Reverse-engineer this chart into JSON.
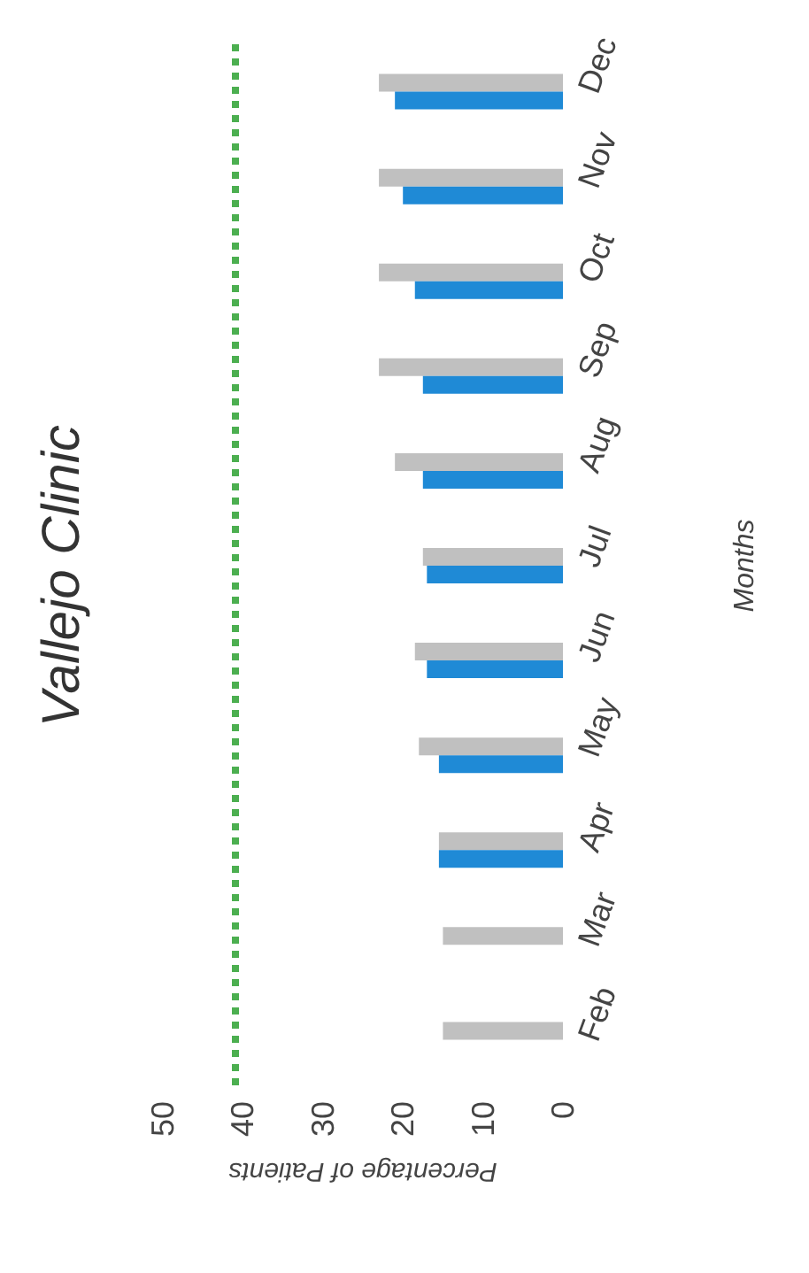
{
  "chart_data": {
    "type": "bar",
    "orientation": "horizontal",
    "title": "Vallejo Clinic",
    "xlabel": "Percentage of Patients",
    "ylabel": "Months",
    "categories": [
      "Dec",
      "Nov",
      "Oct",
      "Sep",
      "Aug",
      "Jul",
      "Jun",
      "May",
      "Apr",
      "Mar",
      "Feb"
    ],
    "series": [
      {
        "color": "#c0c0c0",
        "values": [
          23,
          23,
          23,
          23,
          21,
          17.5,
          18.5,
          18,
          15.5,
          15,
          15
        ]
      },
      {
        "color": "#1f8ad6",
        "values": [
          21,
          20,
          18.5,
          17.5,
          17.5,
          17,
          17,
          15.5,
          15.5,
          null,
          null
        ]
      }
    ],
    "xlim": [
      50,
      0
    ],
    "xticks": [
      0,
      10,
      20,
      30,
      40,
      50
    ],
    "ref_lines": [
      {
        "axis": "x",
        "value": 41,
        "color": "#4caf50",
        "line_style": "dotted"
      }
    ],
    "grid": false
  }
}
